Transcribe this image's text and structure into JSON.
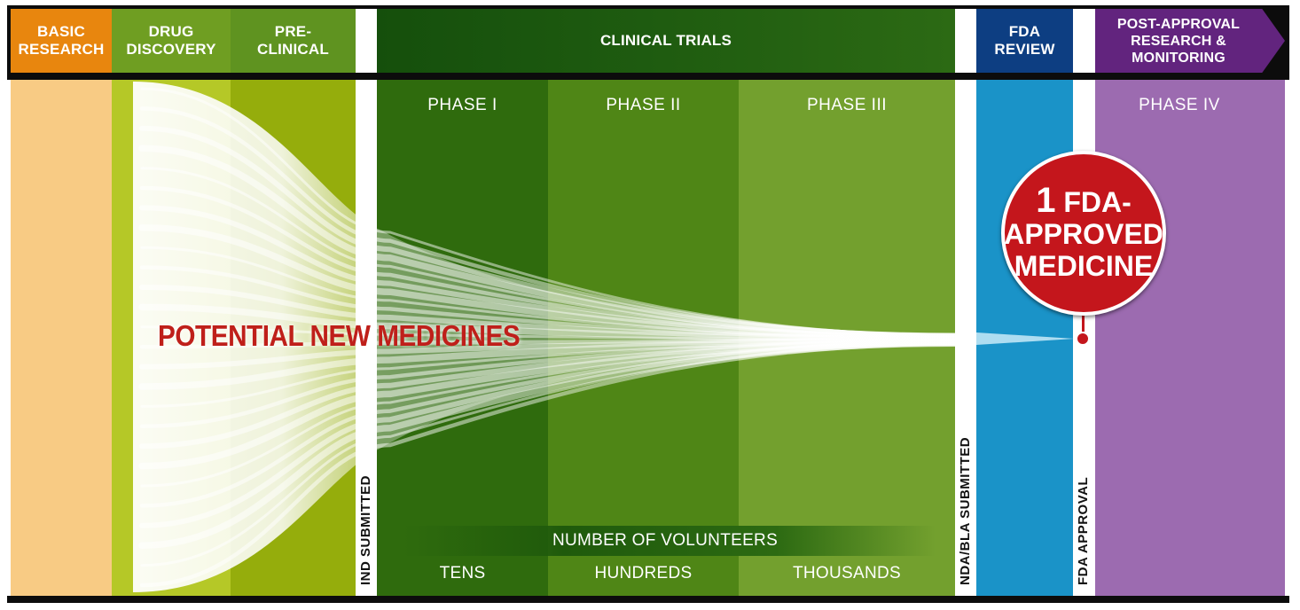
{
  "stages": {
    "basic_research": "BASIC\nRESEARCH",
    "drug_discovery": "DRUG\nDISCOVERY",
    "pre_clinical": "PRE-\nCLINICAL",
    "clinical_trials": "CLINICAL TRIALS",
    "fda_review": "FDA\nREVIEW",
    "post_approval": "POST-APPROVAL\nRESEARCH &\nMONITORING"
  },
  "phases": {
    "phase1": "PHASE I",
    "phase2": "PHASE II",
    "phase3": "PHASE III",
    "phase4": "PHASE IV"
  },
  "milestones": {
    "ind": "IND SUBMITTED",
    "nda": "NDA/BLA SUBMITTED",
    "approval": "FDA APPROVAL"
  },
  "funnel_label": "POTENTIAL NEW MEDICINES",
  "badge": {
    "line1_number": "1",
    "line1_text": "FDA-",
    "line2": "APPROVED",
    "line3": "MEDICINE"
  },
  "volunteers": {
    "title": "NUMBER OF VOLUNTEERS",
    "tens": "TENS",
    "hundreds": "HUNDREDS",
    "thousands": "THOUSANDS"
  },
  "colors": {
    "basic": "#f8cb84",
    "basic_header": "#e8860e",
    "discovery": "#b5c827",
    "preclinical": "#95ad0c",
    "header_green": "#5a8c1e",
    "phase1": "#2f6b0d",
    "phase2": "#4f8616",
    "phase3": "#73a02e",
    "fda_review": "#1a93c8",
    "fda_header": "#0d3e82",
    "phase4": "#9c6bb0",
    "post_header": "#62247e",
    "badge": "#c4161c",
    "funnel_text": "#bf1f1a"
  }
}
